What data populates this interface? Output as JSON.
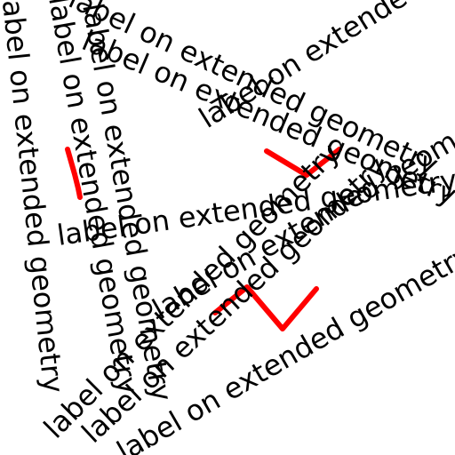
{
  "map": {
    "label_text": "label on extended geometry",
    "line_color": "#ff0000",
    "text_color": "#000000",
    "background": "#ffffff"
  },
  "labels": [
    {
      "name": "label-vertical-1",
      "text": "label on extended geometry"
    },
    {
      "name": "label-vertical-2",
      "text": "label on extended geometry"
    },
    {
      "name": "label-vertical-3",
      "text": "label on extended geometry"
    },
    {
      "name": "label-diagonal-top-1",
      "text": "label on extended geometry"
    },
    {
      "name": "label-diagonal-top-2",
      "text": "label on extended geometry"
    },
    {
      "name": "label-diagonal-top-3",
      "text": "label on extended geometry"
    },
    {
      "name": "label-horizontal-middle",
      "text": "label on extended geometry"
    },
    {
      "name": "label-diagonal-mid-1",
      "text": "label on extended geometry"
    },
    {
      "name": "label-diagonal-mid-2",
      "text": "label on extended geometry"
    },
    {
      "name": "label-diagonal-bottom-1",
      "text": "label on extended geometry"
    },
    {
      "name": "label-diagonal-bottom-2",
      "text": "label on extended geometry"
    }
  ]
}
